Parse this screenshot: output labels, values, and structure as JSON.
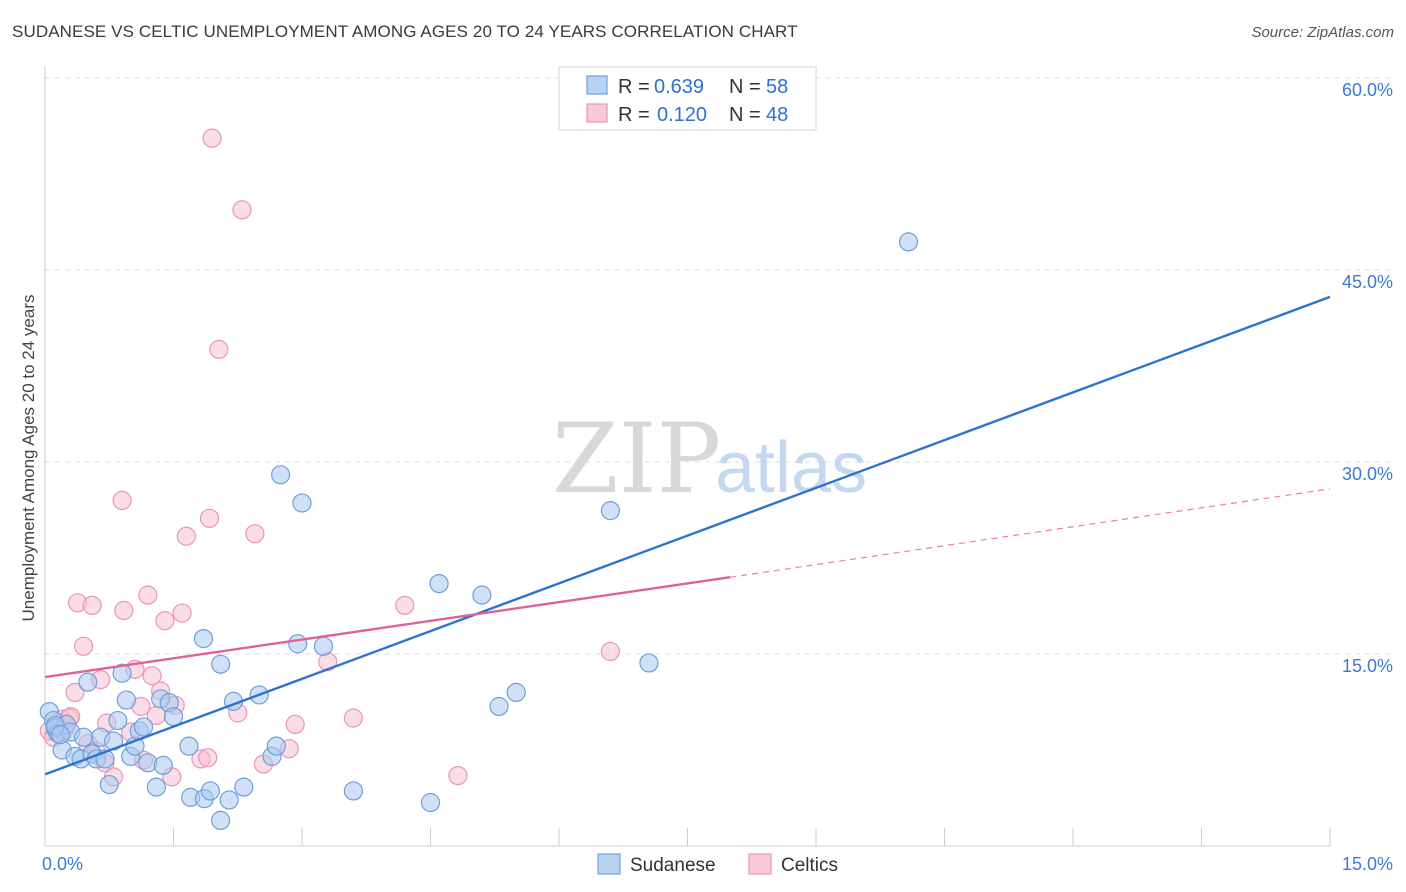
{
  "title": "SUDANESE VS CELTIC UNEMPLOYMENT AMONG AGES 20 TO 24 YEARS CORRELATION CHART",
  "source": "Source: ZipAtlas.com",
  "watermark": {
    "zip": "ZIP",
    "atlas": "atlas"
  },
  "colors": {
    "sudanese_fill": "#a9c8f0",
    "sudanese_stroke": "#6f9fdc",
    "sudanese_line": "#2f72d0",
    "celtics_fill": "#f7bcd0",
    "celtics_stroke": "#ec94b4",
    "celtics_line": "#e0609a",
    "tick": "#3d7ad6",
    "grid": "#dddddd"
  },
  "legend": {
    "rows": [
      {
        "r_label": "R =",
        "r_value": "0.639",
        "n_label": "N =",
        "n_value": "58"
      },
      {
        "r_label": "R =",
        "r_value": "0.120",
        "n_label": "N =",
        "n_value": "48"
      }
    ]
  },
  "bottom_legend": [
    "Sudanese",
    "Celtics"
  ],
  "chart_data": {
    "type": "scatter",
    "title": "SUDANESE VS CELTIC UNEMPLOYMENT AMONG AGES 20 TO 24 YEARS CORRELATION CHART",
    "xlabel": "",
    "ylabel": "Unemployment Among Ages 20 to 24 years",
    "xlim": [
      0,
      15
    ],
    "ylim": [
      0,
      60
    ],
    "x_tick_labels": [
      "0.0%",
      "15.0%"
    ],
    "y_ticks": [
      15,
      30,
      45,
      60
    ],
    "y_tick_labels": [
      "15.0%",
      "30.0%",
      "45.0%",
      "60.0%"
    ],
    "series": [
      {
        "name": "Sudanese",
        "points": [
          [
            0.05,
            10.5
          ],
          [
            0.1,
            9.8
          ],
          [
            0.12,
            9.2
          ],
          [
            0.15,
            8.8
          ],
          [
            0.2,
            7.5
          ],
          [
            0.25,
            9.5
          ],
          [
            0.3,
            8.9
          ],
          [
            0.35,
            7.0
          ],
          [
            0.42,
            6.8
          ],
          [
            0.45,
            8.5
          ],
          [
            0.5,
            12.8
          ],
          [
            0.55,
            7.2
          ],
          [
            0.6,
            6.8
          ],
          [
            0.65,
            8.5
          ],
          [
            0.7,
            6.8
          ],
          [
            0.75,
            4.8
          ],
          [
            0.8,
            8.2
          ],
          [
            0.85,
            9.8
          ],
          [
            0.9,
            13.5
          ],
          [
            0.95,
            11.4
          ],
          [
            1.0,
            7.0
          ],
          [
            1.05,
            7.8
          ],
          [
            1.1,
            9.0
          ],
          [
            1.15,
            9.3
          ],
          [
            1.2,
            6.5
          ],
          [
            1.3,
            4.6
          ],
          [
            1.35,
            11.5
          ],
          [
            1.38,
            6.3
          ],
          [
            1.45,
            11.2
          ],
          [
            1.5,
            10.1
          ],
          [
            1.68,
            7.8
          ],
          [
            1.7,
            3.8
          ],
          [
            1.85,
            16.2
          ],
          [
            1.86,
            3.7
          ],
          [
            1.93,
            4.3
          ],
          [
            2.05,
            14.2
          ],
          [
            2.15,
            3.6
          ],
          [
            2.2,
            11.3
          ],
          [
            2.32,
            4.6
          ],
          [
            2.5,
            11.8
          ],
          [
            2.65,
            7.0
          ],
          [
            2.7,
            7.8
          ],
          [
            2.75,
            29.0
          ],
          [
            2.95,
            15.8
          ],
          [
            3.0,
            26.8
          ],
          [
            3.25,
            15.6
          ],
          [
            3.6,
            4.3
          ],
          [
            4.5,
            3.4
          ],
          [
            4.6,
            20.5
          ],
          [
            5.1,
            19.6
          ],
          [
            5.3,
            10.9
          ],
          [
            5.5,
            12.0
          ],
          [
            6.6,
            26.2
          ],
          [
            7.05,
            14.3
          ],
          [
            10.08,
            47.2
          ],
          [
            2.05,
            2.0
          ],
          [
            0.12,
            9.4
          ],
          [
            0.18,
            8.7
          ]
        ]
      },
      {
        "name": "Celtics",
        "points": [
          [
            0.05,
            9.0
          ],
          [
            0.1,
            8.5
          ],
          [
            0.15,
            9.5
          ],
          [
            0.2,
            9.9
          ],
          [
            0.28,
            10.0
          ],
          [
            0.35,
            12.0
          ],
          [
            0.38,
            19.0
          ],
          [
            0.45,
            15.6
          ],
          [
            0.5,
            8.0
          ],
          [
            0.55,
            18.8
          ],
          [
            0.6,
            7.4
          ],
          [
            0.65,
            13.0
          ],
          [
            0.7,
            6.5
          ],
          [
            0.72,
            9.6
          ],
          [
            0.8,
            5.4
          ],
          [
            0.9,
            27.0
          ],
          [
            0.92,
            18.4
          ],
          [
            1.0,
            8.9
          ],
          [
            1.05,
            13.8
          ],
          [
            1.12,
            10.9
          ],
          [
            1.15,
            6.7
          ],
          [
            1.2,
            19.6
          ],
          [
            1.25,
            13.3
          ],
          [
            1.3,
            10.2
          ],
          [
            1.35,
            12.1
          ],
          [
            1.4,
            17.6
          ],
          [
            1.48,
            5.4
          ],
          [
            1.52,
            11.0
          ],
          [
            1.6,
            18.2
          ],
          [
            1.65,
            24.2
          ],
          [
            1.82,
            6.8
          ],
          [
            1.9,
            6.9
          ],
          [
            1.92,
            25.6
          ],
          [
            1.95,
            55.3
          ],
          [
            2.03,
            38.8
          ],
          [
            2.25,
            10.4
          ],
          [
            2.3,
            49.7
          ],
          [
            2.45,
            24.4
          ],
          [
            2.55,
            6.4
          ],
          [
            2.85,
            7.6
          ],
          [
            2.92,
            9.5
          ],
          [
            3.3,
            14.4
          ],
          [
            3.6,
            10.0
          ],
          [
            4.2,
            18.8
          ],
          [
            4.82,
            5.5
          ],
          [
            6.6,
            15.2
          ],
          [
            0.3,
            10.1
          ],
          [
            0.22,
            9.0
          ]
        ]
      }
    ],
    "trend_lines": [
      {
        "series": "Sudanese",
        "from": [
          0,
          5.6
        ],
        "to": [
          15,
          42.9
        ],
        "style": "solid"
      },
      {
        "series": "Celtics",
        "from": [
          0,
          13.2
        ],
        "to": [
          8,
          21.0
        ],
        "style": "solid"
      },
      {
        "series": "Celtics",
        "from": [
          8,
          21.0
        ],
        "to": [
          15,
          27.9
        ],
        "style": "dashed"
      }
    ]
  }
}
